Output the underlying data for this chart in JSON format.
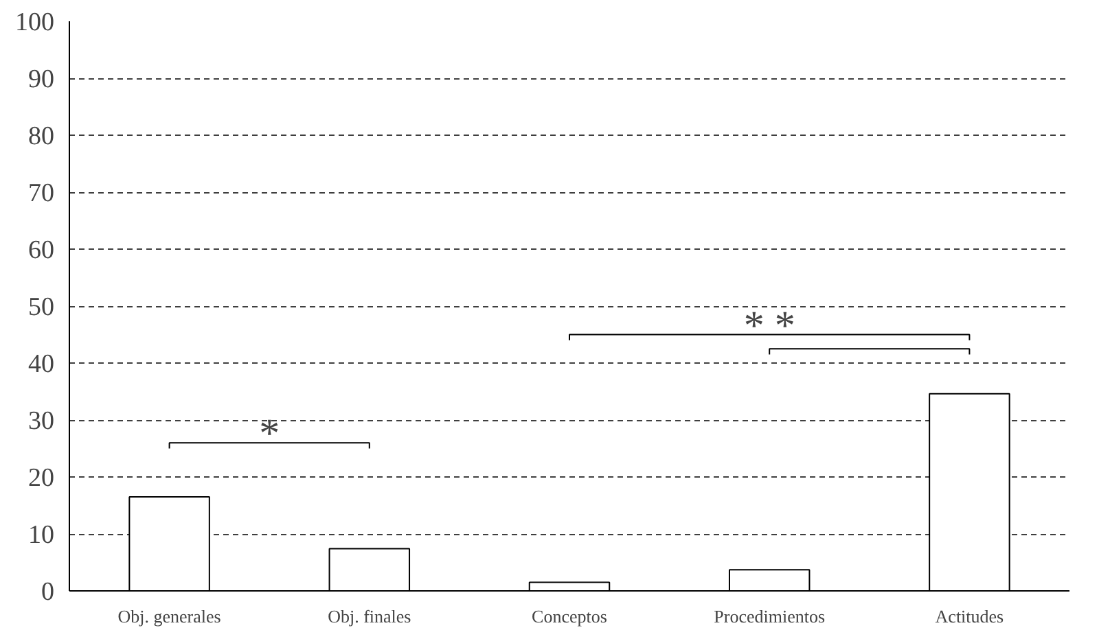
{
  "chart_data": {
    "type": "bar",
    "categories": [
      "Obj. generales",
      "Obj. finales",
      "Conceptos",
      "Procedimientos",
      "Actitudes"
    ],
    "values": [
      16.5,
      7.4,
      1.5,
      3.7,
      34.6
    ],
    "color": "#ffffff",
    "ylim": [
      0,
      100
    ],
    "yticks": [
      0,
      10,
      20,
      30,
      40,
      50,
      60,
      70,
      80,
      90,
      100
    ],
    "grid": "y",
    "annotations": [
      "*",
      "* *"
    ]
  }
}
